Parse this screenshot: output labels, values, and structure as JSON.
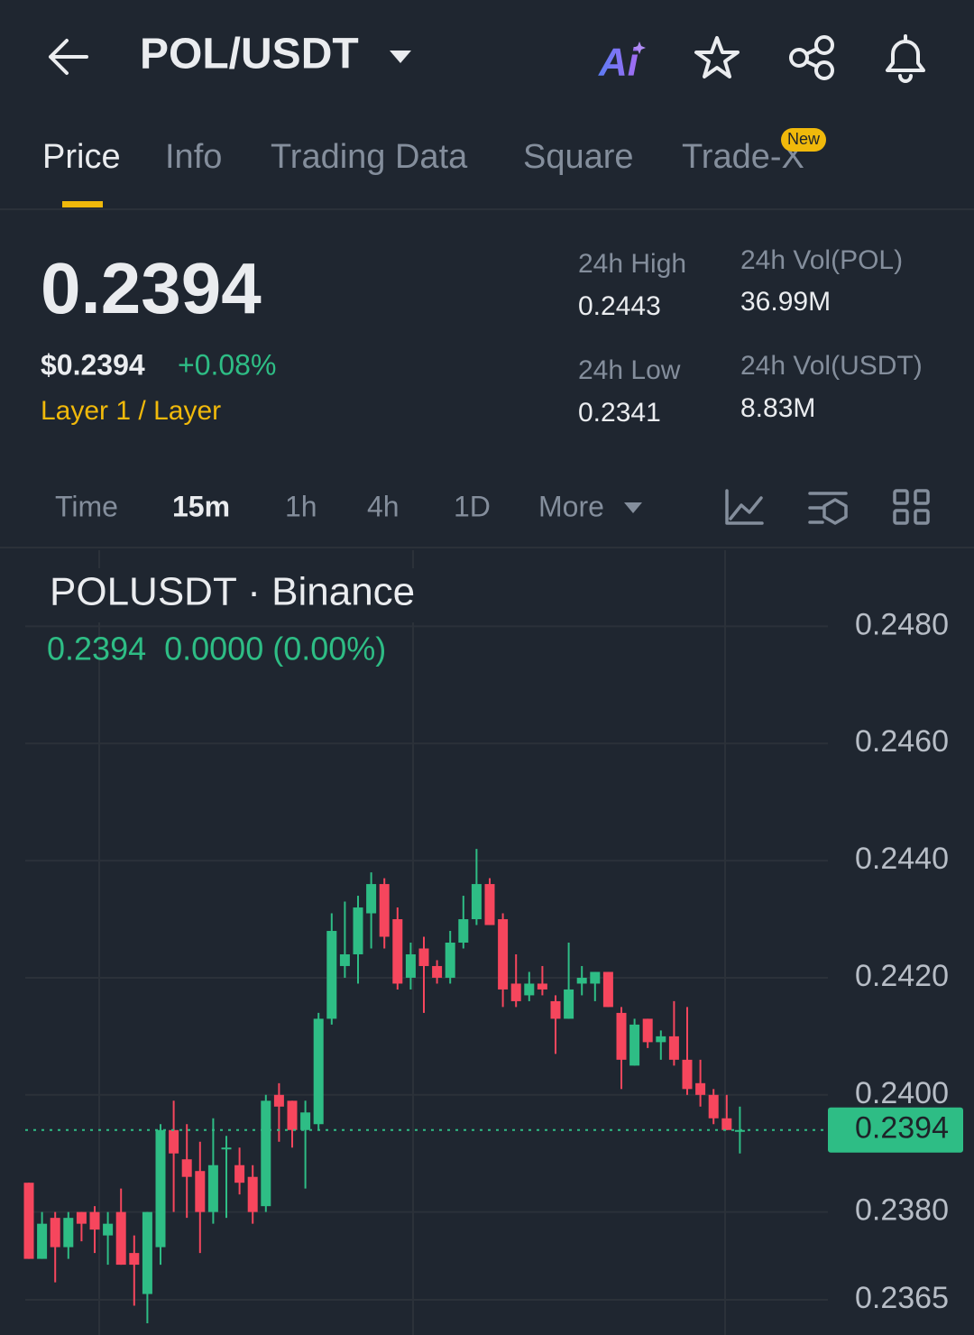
{
  "header": {
    "title": "POL/USDT",
    "ai_label": "Ai"
  },
  "tabs": [
    {
      "label": "Price"
    },
    {
      "label": "Info"
    },
    {
      "label": "Trading Data"
    },
    {
      "label": "Square"
    },
    {
      "label": "Trade-X",
      "badge": "New"
    }
  ],
  "ticker": {
    "price": "0.2394",
    "usd_price": "$0.2394",
    "change": "+0.08%",
    "tags": "Layer 1 / Layer",
    "stats": [
      {
        "label": "24h High",
        "value": "0.2443"
      },
      {
        "label": "24h Low",
        "value": "0.2341"
      },
      {
        "label": "24h Vol(POL)",
        "value": "36.99M"
      },
      {
        "label": "24h Vol(USDT)",
        "value": "8.83M"
      }
    ]
  },
  "intervals": [
    "Time",
    "15m",
    "1h",
    "4h",
    "1D",
    "More"
  ],
  "chart_data": {
    "type": "candlestick",
    "title": "POLUSDT · Binance",
    "subtitle": "0.2394  0.0000 (0.00%)",
    "open": [
      0.2385,
      0.2372,
      0.2379,
      0.2374,
      0.238,
      0.238,
      0.2376,
      0.238,
      0.2373,
      0.2366,
      0.2374,
      0.2394,
      0.2389,
      0.2387,
      0.238,
      0.2391,
      0.2388,
      0.2386,
      0.2381,
      0.24,
      0.2399,
      0.2394,
      0.2395,
      0.2413,
      0.2422,
      0.2424,
      0.2431,
      0.2436,
      0.243,
      0.242,
      0.2425,
      0.2422,
      0.242,
      0.2426,
      0.243,
      0.2436,
      0.243,
      0.2419,
      0.2417,
      0.2419,
      0.2416,
      0.2413,
      0.2419,
      0.2419,
      0.2421,
      0.2414,
      0.2405,
      0.2413,
      0.2409,
      0.241,
      0.2406,
      0.2402,
      0.24,
      0.2396,
      0.2394
    ],
    "high": [
      0.2385,
      0.238,
      0.238,
      0.238,
      0.238,
      0.2381,
      0.238,
      0.2384,
      0.2376,
      0.238,
      0.2395,
      0.2399,
      0.2395,
      0.2392,
      0.2396,
      0.2393,
      0.2391,
      0.2388,
      0.24,
      0.2402,
      0.2399,
      0.2399,
      0.2414,
      0.2431,
      0.2433,
      0.2434,
      0.2438,
      0.2437,
      0.2432,
      0.2426,
      0.2427,
      0.2423,
      0.2428,
      0.2434,
      0.2442,
      0.2437,
      0.2431,
      0.2424,
      0.2421,
      0.2422,
      0.2417,
      0.2426,
      0.2422,
      0.2421,
      0.2421,
      0.2415,
      0.2413,
      0.2413,
      0.2411,
      0.2416,
      0.2415,
      0.2406,
      0.2401,
      0.24,
      0.2398
    ],
    "low": [
      0.2372,
      0.2372,
      0.2368,
      0.2372,
      0.2375,
      0.2373,
      0.2371,
      0.2371,
      0.2364,
      0.2361,
      0.2371,
      0.238,
      0.2379,
      0.2373,
      0.2378,
      0.2379,
      0.2383,
      0.2378,
      0.238,
      0.2392,
      0.2391,
      0.2384,
      0.2394,
      0.2412,
      0.242,
      0.2419,
      0.2425,
      0.2425,
      0.2418,
      0.2418,
      0.2414,
      0.2419,
      0.2419,
      0.2425,
      0.2429,
      0.2429,
      0.2415,
      0.2415,
      0.2416,
      0.2417,
      0.2407,
      0.2413,
      0.2417,
      0.2416,
      0.2415,
      0.2401,
      0.2405,
      0.2408,
      0.2406,
      0.2405,
      0.24,
      0.2398,
      0.2395,
      0.2394,
      0.239
    ],
    "close": [
      0.2372,
      0.2378,
      0.2374,
      0.2379,
      0.2378,
      0.2377,
      0.2378,
      0.2371,
      0.2371,
      0.238,
      0.2394,
      0.239,
      0.2386,
      0.238,
      0.2388,
      0.2391,
      0.2385,
      0.238,
      0.2399,
      0.2398,
      0.2394,
      0.2397,
      0.2413,
      0.2428,
      0.2424,
      0.2432,
      0.2436,
      0.2427,
      0.2419,
      0.2424,
      0.2422,
      0.242,
      0.2426,
      0.243,
      0.2436,
      0.2429,
      0.2418,
      0.2416,
      0.2419,
      0.2418,
      0.2413,
      0.2418,
      0.242,
      0.2421,
      0.2415,
      0.2406,
      0.2412,
      0.2409,
      0.241,
      0.2406,
      0.2401,
      0.24,
      0.2396,
      0.2394,
      0.2394
    ],
    "up_color": "#2ebd85",
    "down_color": "#f6465d",
    "ylim": [
      0.2493,
      0.2359
    ],
    "yticks": [
      {
        "value": 0.248,
        "label": "0.2480"
      },
      {
        "value": 0.246,
        "label": "0.2460"
      },
      {
        "value": 0.244,
        "label": "0.2440"
      },
      {
        "value": 0.242,
        "label": "0.2420"
      },
      {
        "value": 0.24,
        "label": "0.2400"
      },
      {
        "value": 0.238,
        "label": "0.2380"
      },
      {
        "value": 0.2365,
        "label": "0.2365"
      }
    ],
    "current_price": {
      "value": 0.2394,
      "label": "0.2394"
    },
    "grid": true
  }
}
